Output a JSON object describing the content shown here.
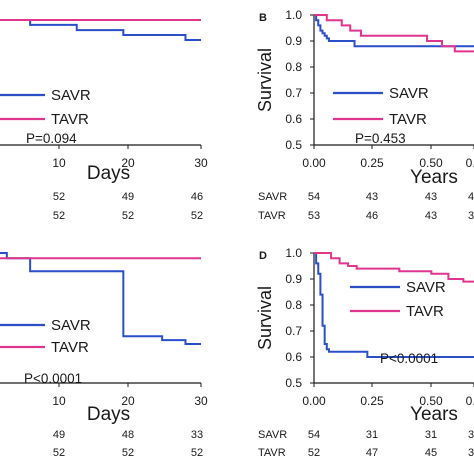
{
  "colors": {
    "SAVR": "#2a4fc8",
    "TAVR": "#e0358e",
    "axis": "#1a1a1a"
  },
  "chart_data": [
    {
      "id": "A",
      "type": "line",
      "panel_label": "",
      "xlabel": "Days",
      "ylabel": "",
      "xticks": [
        "10",
        "20",
        "30"
      ],
      "xlim": [
        0,
        30
      ],
      "ylim": [
        0.5,
        1.0
      ],
      "legend": "lower-left",
      "p_value": "P=0.094",
      "series": [
        {
          "name": "SAVR",
          "color": "#2a4fc8",
          "steps": [
            [
              0,
              1.0
            ],
            [
              3,
              0.981
            ],
            [
              8,
              0.962
            ],
            [
              14,
              0.962
            ],
            [
              14,
              0.942
            ],
            [
              20,
              0.942
            ],
            [
              20,
              0.923
            ],
            [
              28,
              0.923
            ],
            [
              28,
              0.904
            ],
            [
              30,
              0.904
            ]
          ]
        },
        {
          "name": "TAVR",
          "color": "#e0358e",
          "steps": [
            [
              0,
              0.981
            ],
            [
              30,
              0.981
            ]
          ]
        }
      ],
      "risk_table": {
        "labels": [],
        "rows": [
          [
            "52",
            "49",
            "46"
          ],
          [
            "52",
            "52",
            "52"
          ]
        ]
      }
    },
    {
      "id": "B",
      "type": "line",
      "panel_label": "B",
      "xlabel": "Years",
      "ylabel": "Survival",
      "yticks": [
        "1.0",
        "0.9",
        "0.8",
        "0.7",
        "0.6",
        "0.5"
      ],
      "xticks": [
        "0.00",
        "0.25",
        "0.50",
        "0.7"
      ],
      "xlim": [
        0,
        0.75
      ],
      "ylim": [
        0.5,
        1.0
      ],
      "legend": "center",
      "p_value": "P=0.453",
      "series": [
        {
          "name": "SAVR",
          "color": "#2a4fc8",
          "steps": [
            [
              0,
              1.0
            ],
            [
              0.01,
              0.98
            ],
            [
              0.02,
              0.96
            ],
            [
              0.03,
              0.94
            ],
            [
              0.04,
              0.93
            ],
            [
              0.05,
              0.92
            ],
            [
              0.06,
              0.91
            ],
            [
              0.07,
              0.9
            ],
            [
              0.19,
              0.9
            ],
            [
              0.19,
              0.88
            ],
            [
              0.75,
              0.88
            ]
          ]
        },
        {
          "name": "TAVR",
          "color": "#e0358e",
          "steps": [
            [
              0,
              1.0
            ],
            [
              0.06,
              1.0
            ],
            [
              0.06,
              0.98
            ],
            [
              0.13,
              0.98
            ],
            [
              0.13,
              0.96
            ],
            [
              0.17,
              0.96
            ],
            [
              0.17,
              0.94
            ],
            [
              0.22,
              0.94
            ],
            [
              0.22,
              0.92
            ],
            [
              0.53,
              0.92
            ],
            [
              0.53,
              0.9
            ],
            [
              0.6,
              0.9
            ],
            [
              0.6,
              0.88
            ],
            [
              0.66,
              0.88
            ],
            [
              0.66,
              0.86
            ],
            [
              0.75,
              0.86
            ]
          ]
        }
      ],
      "risk_table": {
        "labels": [
          "SAVR",
          "TAVR"
        ],
        "rows": [
          [
            "54",
            "43",
            "43",
            "4"
          ],
          [
            "53",
            "46",
            "43",
            "3"
          ]
        ]
      }
    },
    {
      "id": "C",
      "type": "line",
      "panel_label": "",
      "xlabel": "Days",
      "ylabel": "",
      "xticks": [
        "10",
        "20",
        "30"
      ],
      "xlim": [
        0,
        30
      ],
      "ylim": [
        0.5,
        1.0
      ],
      "legend": "lower-left",
      "p_value": "P<0.0001",
      "series": [
        {
          "name": "SAVR",
          "color": "#2a4fc8",
          "steps": [
            [
              0,
              1.0
            ],
            [
              5,
              0.98
            ],
            [
              8,
              0.96
            ],
            [
              8,
              0.93
            ],
            [
              20,
              0.93
            ],
            [
              20,
              0.68
            ],
            [
              25,
              0.68
            ],
            [
              25,
              0.665
            ],
            [
              28,
              0.665
            ],
            [
              28,
              0.65
            ],
            [
              30,
              0.65
            ]
          ]
        },
        {
          "name": "TAVR",
          "color": "#e0358e",
          "steps": [
            [
              0,
              0.98
            ],
            [
              30,
              0.98
            ]
          ]
        }
      ],
      "risk_table": {
        "labels": [],
        "rows": [
          [
            "49",
            "48",
            "33"
          ],
          [
            "52",
            "52",
            "52"
          ]
        ]
      }
    },
    {
      "id": "D",
      "type": "line",
      "panel_label": "D",
      "xlabel": "Years",
      "ylabel": "Survival",
      "yticks": [
        "1.0",
        "0.9",
        "0.8",
        "0.7",
        "0.6",
        "0.5"
      ],
      "xticks": [
        "0.00",
        "0.25",
        "0.50",
        "0.7"
      ],
      "xlim": [
        0,
        0.75
      ],
      "ylim": [
        0.5,
        1.0
      ],
      "legend": "center",
      "p_value": "P<0.0001",
      "series": [
        {
          "name": "SAVR",
          "color": "#2a4fc8",
          "steps": [
            [
              0,
              1.0
            ],
            [
              0.01,
              0.96
            ],
            [
              0.02,
              0.92
            ],
            [
              0.03,
              0.84
            ],
            [
              0.04,
              0.72
            ],
            [
              0.05,
              0.65
            ],
            [
              0.06,
              0.63
            ],
            [
              0.07,
              0.62
            ],
            [
              0.25,
              0.62
            ],
            [
              0.25,
              0.6
            ],
            [
              0.75,
              0.6
            ]
          ]
        },
        {
          "name": "TAVR",
          "color": "#e0358e",
          "steps": [
            [
              0,
              1.0
            ],
            [
              0.08,
              0.98
            ],
            [
              0.12,
              0.96
            ],
            [
              0.16,
              0.95
            ],
            [
              0.2,
              0.95
            ],
            [
              0.2,
              0.94
            ],
            [
              0.4,
              0.94
            ],
            [
              0.4,
              0.93
            ],
            [
              0.55,
              0.93
            ],
            [
              0.55,
              0.92
            ],
            [
              0.63,
              0.92
            ],
            [
              0.63,
              0.9
            ],
            [
              0.7,
              0.9
            ],
            [
              0.7,
              0.89
            ],
            [
              0.75,
              0.89
            ]
          ]
        }
      ],
      "risk_table": {
        "labels": [
          "SAVR",
          "TAVR"
        ],
        "rows": [
          [
            "54",
            "31",
            "31",
            "3"
          ],
          [
            "52",
            "47",
            "45",
            "3"
          ]
        ]
      }
    }
  ]
}
